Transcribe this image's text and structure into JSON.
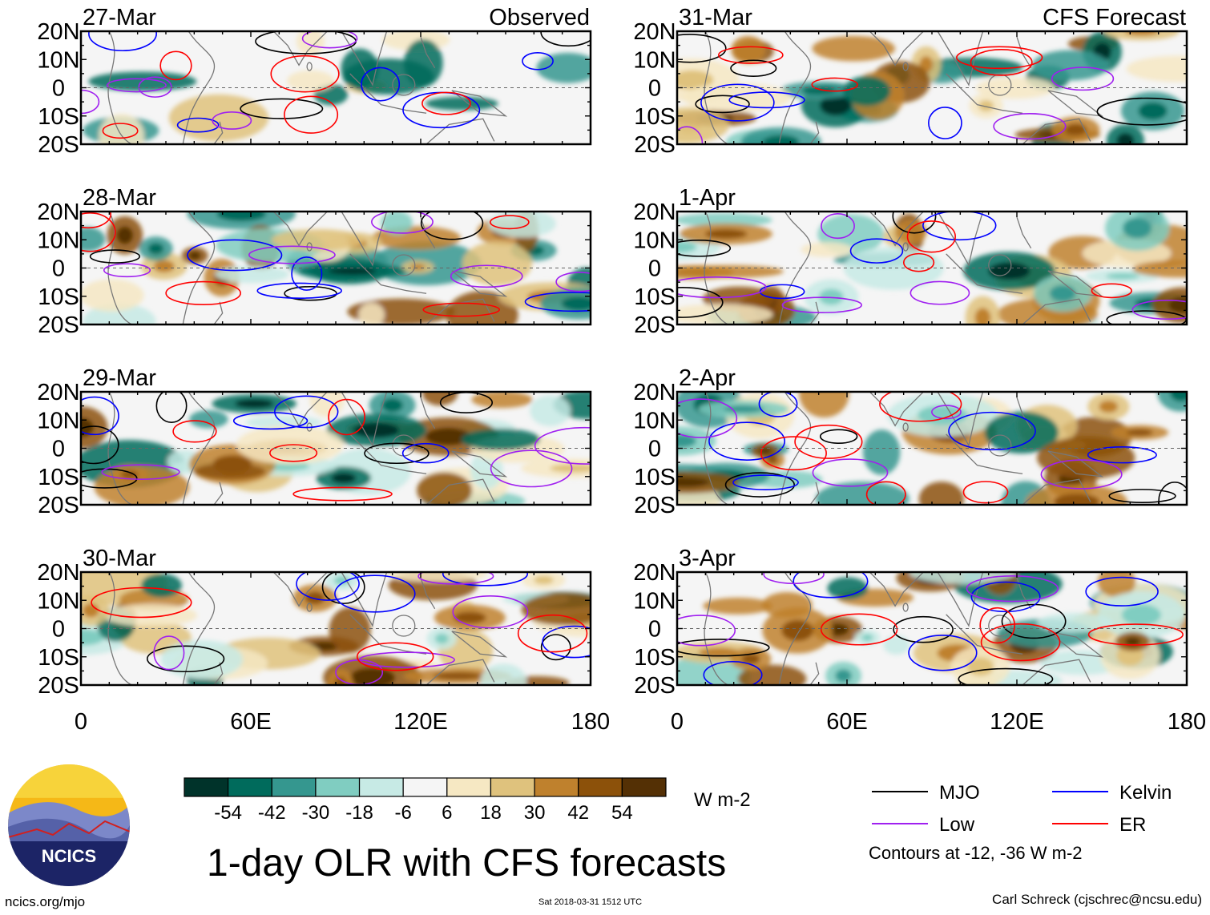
{
  "chart_data": {
    "type": "heatmap",
    "variable": "1-day OLR anomaly with CFS forecasts",
    "units": "W m-2",
    "title": "1-day OLR with CFS forecasts",
    "x_ticks": [
      "0",
      "60E",
      "120E",
      "180"
    ],
    "x_range": [
      0,
      180
    ],
    "y_ticks": [
      "20N",
      "10N",
      "0",
      "10S",
      "20S"
    ],
    "y_range": [
      -20,
      20
    ],
    "columns": [
      {
        "label": "Observed",
        "panels": [
          "27-Mar",
          "28-Mar",
          "29-Mar",
          "30-Mar"
        ]
      },
      {
        "label": "CFS Forecast",
        "panels": [
          "31-Mar",
          "1-Apr",
          "2-Apr",
          "3-Apr"
        ]
      }
    ],
    "colorbar": {
      "labels": [
        "-54",
        "-42",
        "-30",
        "-18",
        "-6",
        "6",
        "18",
        "30",
        "42",
        "54"
      ],
      "colors": [
        "#00332a",
        "#006b5c",
        "#35978f",
        "#80cdc1",
        "#c7eae5",
        "#f5f5f5",
        "#f6e8c3",
        "#dfc27d",
        "#bf812d",
        "#8c510a",
        "#543005"
      ]
    },
    "contours_note": "Contours at -12, -36 W m-2",
    "contour_legend": [
      {
        "name": "MJO",
        "color": "#000000"
      },
      {
        "name": "Kelvin",
        "color": "#0000ff"
      },
      {
        "name": "Low",
        "color": "#a020f0"
      },
      {
        "name": "ER",
        "color": "#ff0000"
      }
    ]
  },
  "logo_text": "NCICS",
  "footer": {
    "site": "ncics.org/mjo",
    "timestamp": "Sat 2018-03-31 1512 UTC",
    "author": "Carl Schreck (cjschrec@ncsu.edu)"
  }
}
